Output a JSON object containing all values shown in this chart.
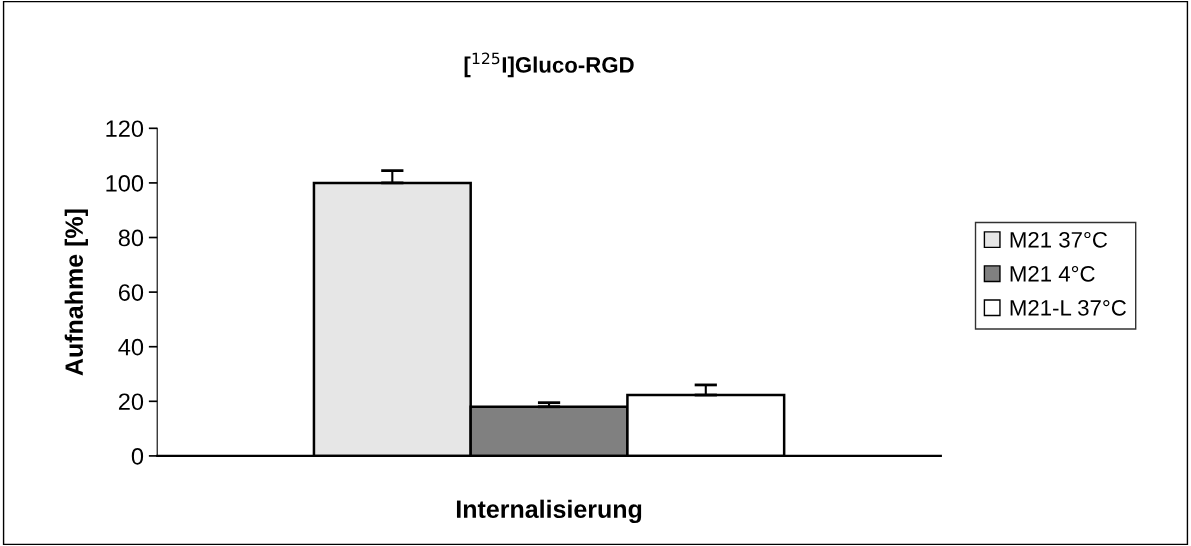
{
  "chart_data": {
    "type": "bar",
    "title": "[$^{125}$I]Gluco-RGD",
    "xlabel": "Internalisierung",
    "ylabel": "Aufnahme [%]",
    "categories": [
      null
    ],
    "series": [
      {
        "name": "M21 37°C",
        "color": "#e6e6e6",
        "values": [
          100
        ],
        "errors": [
          4.5
        ]
      },
      {
        "name": "M21 4°C",
        "color": "#808080",
        "values": [
          18
        ],
        "errors": [
          1.5
        ]
      },
      {
        "name": "M21-L 37°C",
        "color": "#ffffff",
        "values": [
          22.3
        ],
        "errors": [
          3.7
        ]
      }
    ],
    "ylim": [
      0,
      120
    ],
    "yticks": [
      0,
      20,
      40,
      60,
      80,
      100,
      120
    ],
    "grid": false,
    "legend": "right"
  }
}
